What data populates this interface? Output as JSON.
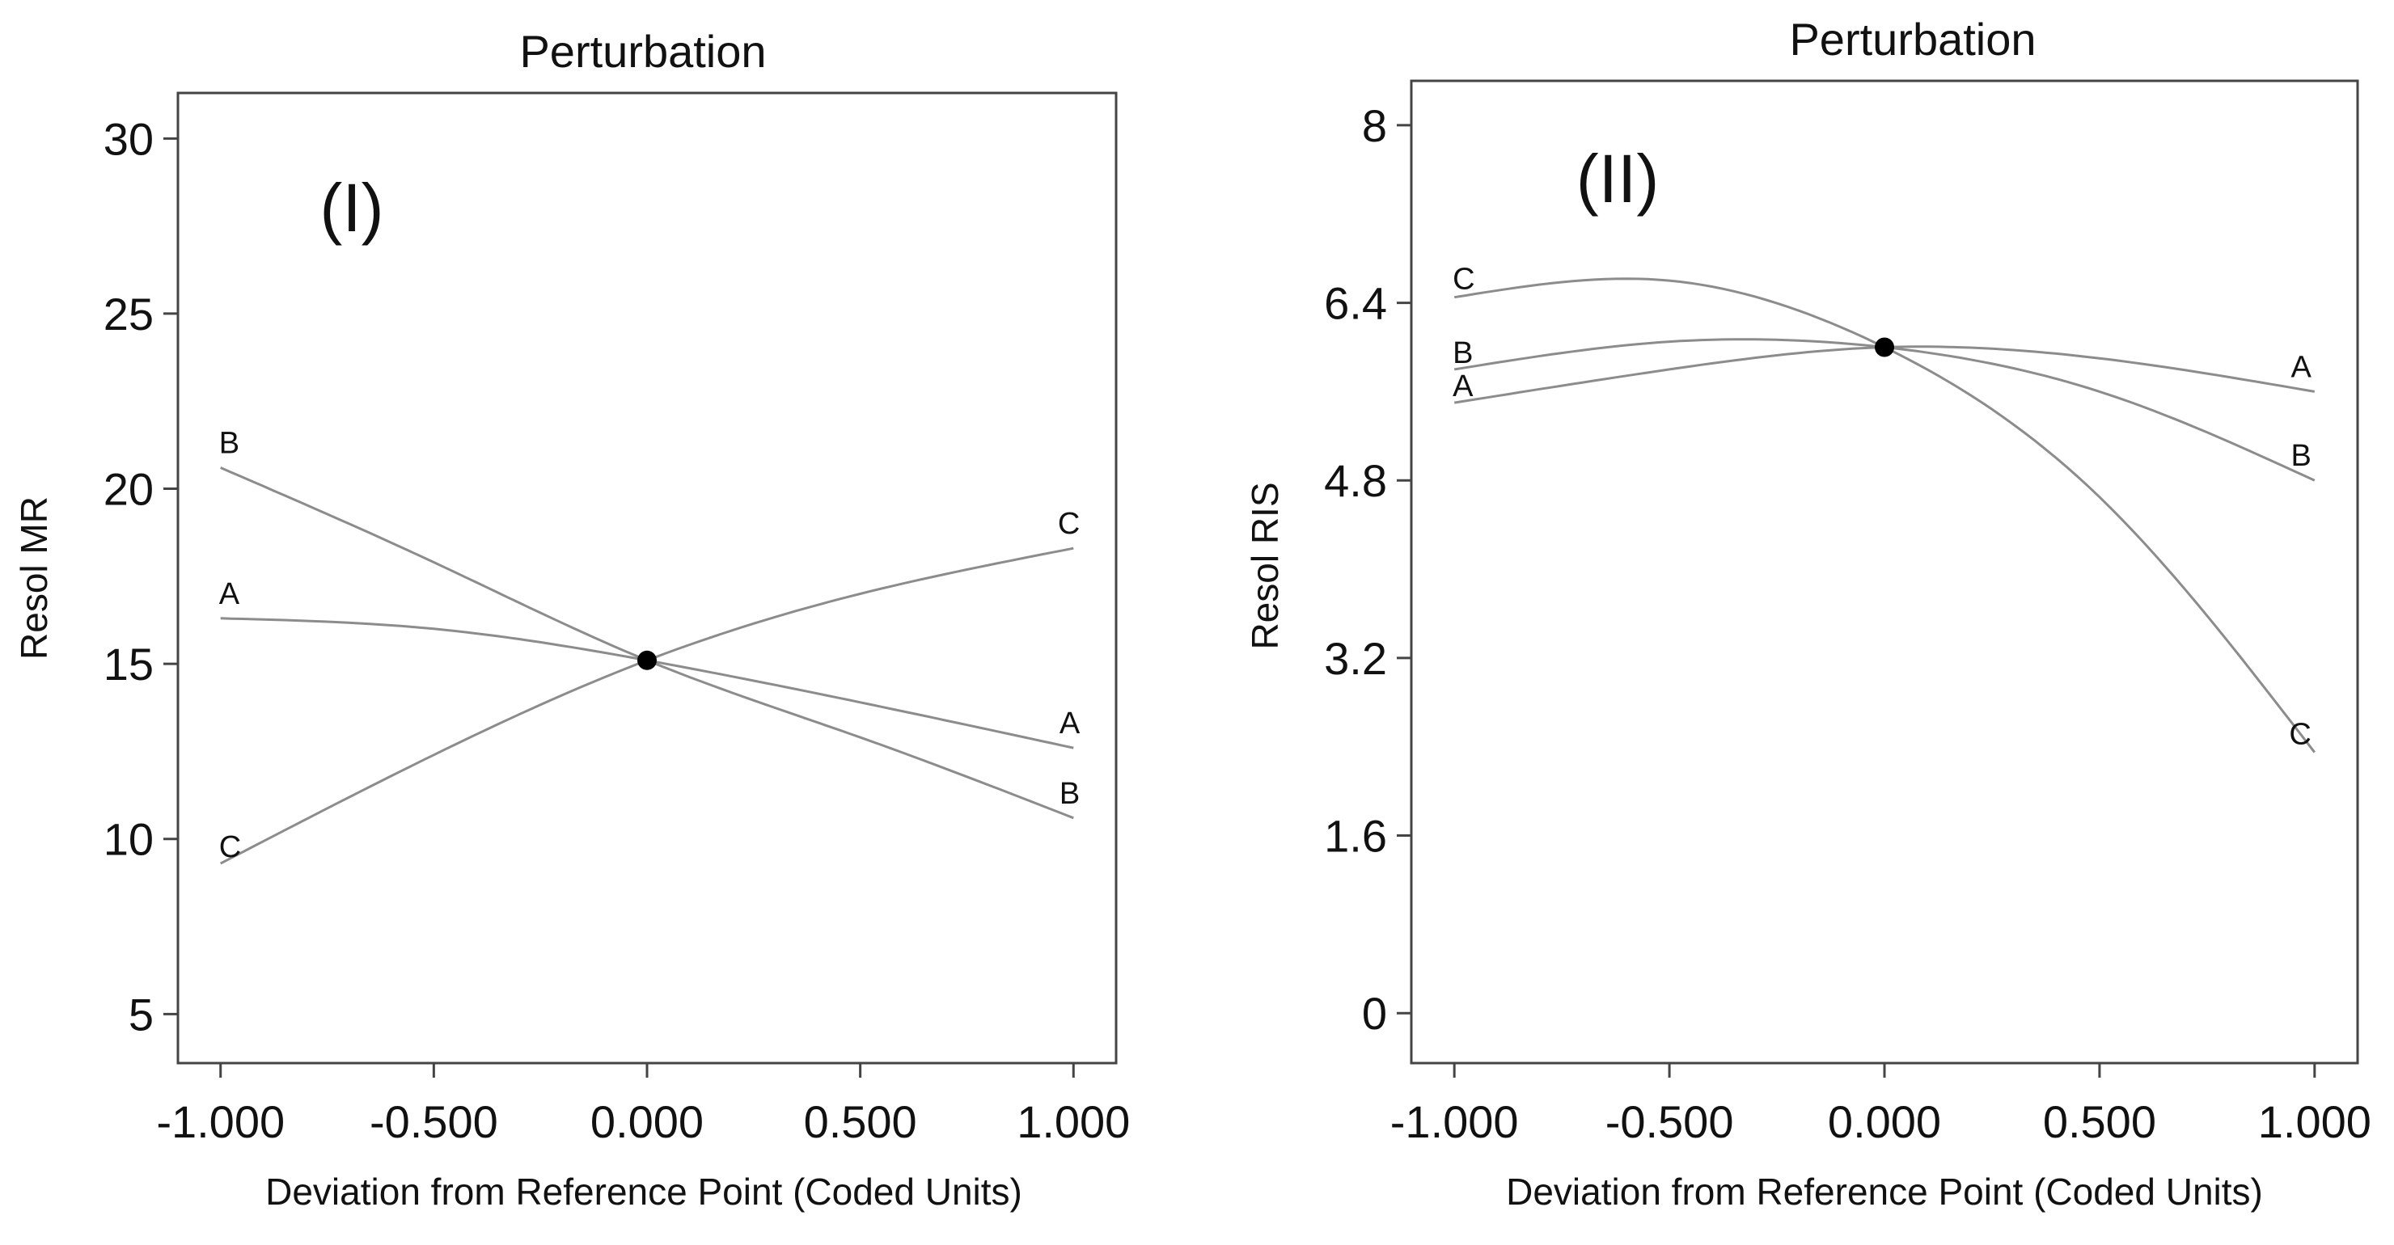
{
  "chart_data": [
    {
      "type": "line",
      "title": "Perturbation",
      "panel_label": "(I)",
      "xlabel": "Deviation from Reference Point (Coded Units)",
      "ylabel": "Resol MR",
      "xlim": [
        -1.1,
        1.1
      ],
      "ylim": [
        3.6,
        31.3
      ],
      "x_ticks": [
        -1.0,
        -0.5,
        0.0,
        0.5,
        1.0
      ],
      "x_tick_labels": [
        "-1.000",
        "-0.500",
        "0.000",
        "0.500",
        "1.000"
      ],
      "y_ticks": [
        5,
        10,
        15,
        20,
        25,
        30
      ],
      "y_tick_labels": [
        "5",
        "10",
        "15",
        "20",
        "25",
        "30"
      ],
      "reference_point": {
        "x": 0.0,
        "y": 15.1
      },
      "series": [
        {
          "name": "A",
          "x": [
            -1.0,
            -0.5,
            0.0,
            0.5,
            1.0
          ],
          "values": [
            16.3,
            16.0,
            15.1,
            13.9,
            12.6
          ]
        },
        {
          "name": "B",
          "x": [
            -1.0,
            -0.5,
            0.0,
            0.5,
            1.0
          ],
          "values": [
            20.6,
            17.9,
            15.1,
            12.9,
            10.6
          ]
        },
        {
          "name": "C",
          "x": [
            -1.0,
            -0.5,
            0.0,
            0.5,
            1.0
          ],
          "values": [
            9.3,
            12.4,
            15.1,
            17.0,
            18.3
          ]
        }
      ]
    },
    {
      "type": "line",
      "title": "Perturbation",
      "panel_label": "(II)",
      "xlabel": "Deviation from Reference Point (Coded Units)",
      "ylabel": "Resol RIS",
      "xlim": [
        -1.1,
        1.1
      ],
      "ylim": [
        -0.45,
        8.4
      ],
      "x_ticks": [
        -1.0,
        -0.5,
        0.0,
        0.5,
        1.0
      ],
      "x_tick_labels": [
        "-1.000",
        "-0.500",
        "0.000",
        "0.500",
        "1.000"
      ],
      "y_ticks": [
        0,
        1.6,
        3.2,
        4.8,
        6.4,
        8
      ],
      "y_tick_labels": [
        "0",
        "1.6",
        "3.2",
        "4.8",
        "6.4",
        "8"
      ],
      "reference_point": {
        "x": 0.0,
        "y": 6.0
      },
      "series": [
        {
          "name": "A",
          "x": [
            -1.0,
            -0.5,
            0.0,
            0.5,
            1.0
          ],
          "values": [
            5.5,
            5.8,
            6.0,
            5.9,
            5.6
          ]
        },
        {
          "name": "B",
          "x": [
            -1.0,
            -0.5,
            0.0,
            0.5,
            1.0
          ],
          "values": [
            5.8,
            6.05,
            6.0,
            5.6,
            4.8
          ]
        },
        {
          "name": "C",
          "x": [
            -1.0,
            -0.5,
            0.0,
            0.5,
            1.0
          ],
          "values": [
            6.45,
            6.6,
            6.0,
            4.65,
            2.35
          ]
        }
      ]
    }
  ],
  "colors": {
    "curve": "#8c8c8c",
    "frame": "#444444",
    "point": "#000000",
    "text": "#111111"
  }
}
